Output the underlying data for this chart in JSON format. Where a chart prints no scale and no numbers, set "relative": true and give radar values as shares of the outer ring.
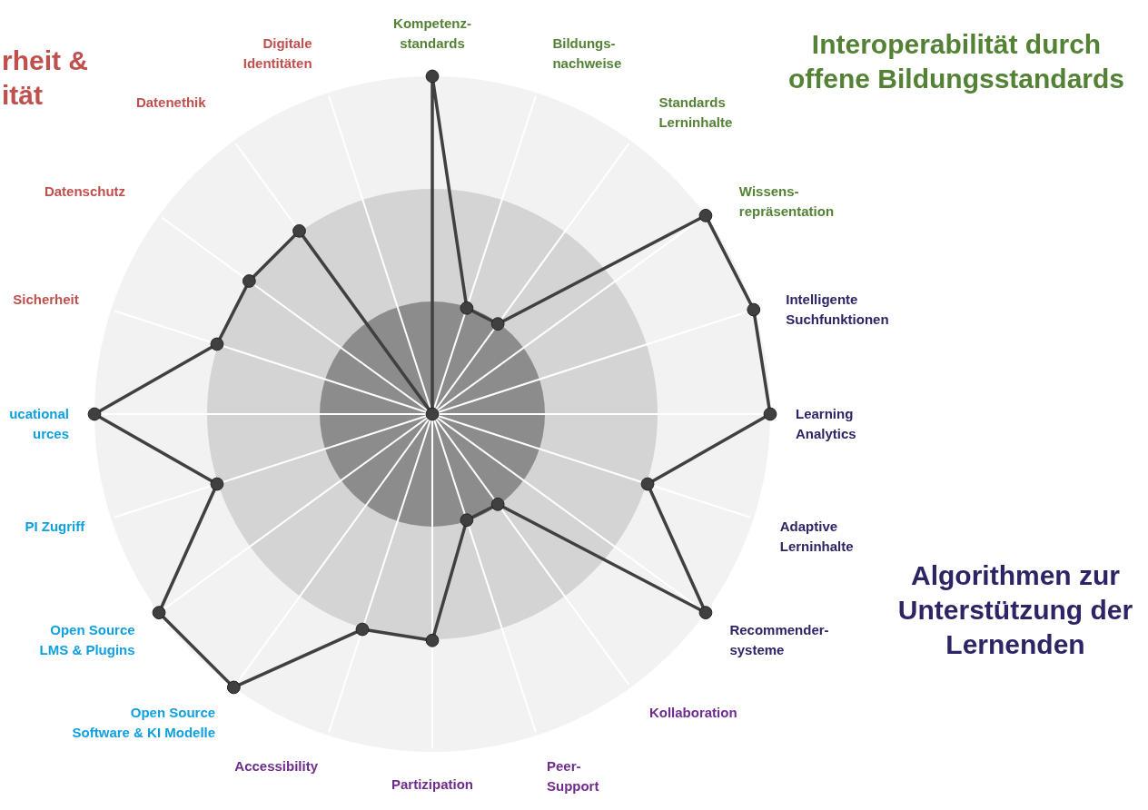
{
  "chart_data": {
    "type": "radar",
    "relative": true,
    "grid": true,
    "marker": "circle",
    "categories": [
      "Kompetenz-\nstandards",
      "Bildungs-\nnachweise",
      "Standards\nLerninhalte",
      "Wissens-\nrepräsentation",
      "Intelligente\nSuchfunktionen",
      "Learning\nAnalytics",
      "Adaptive\nLerninhalte",
      "Recommender-\nsysteme",
      "Kollaboration",
      "Peer-\nSupport",
      "Partizipation",
      "Accessibility",
      "Open Source\nSoftware & KI Modelle",
      "Open Source\nLMS & Plugins",
      "PI Zugriff",
      "ucational\nurces",
      "Sicherheit",
      "Datenschutz",
      "Datenethik",
      "Digitale\nIdentitäten"
    ],
    "series": [
      {
        "color": "#404040",
        "values": [
          1,
          0.33,
          0.33,
          1,
          1,
          1,
          0.67,
          1,
          0.33,
          0.33,
          0.67,
          0.67,
          1,
          1,
          0.67,
          1,
          0.67,
          0.67,
          0.67,
          0
        ]
      }
    ],
    "annotations": [
      "rheit &\nität",
      "Interoperabilität durch\noffene Bildungsstandards",
      "Algorithmen zur\nUnterstützung der\nLernenden"
    ]
  }
}
